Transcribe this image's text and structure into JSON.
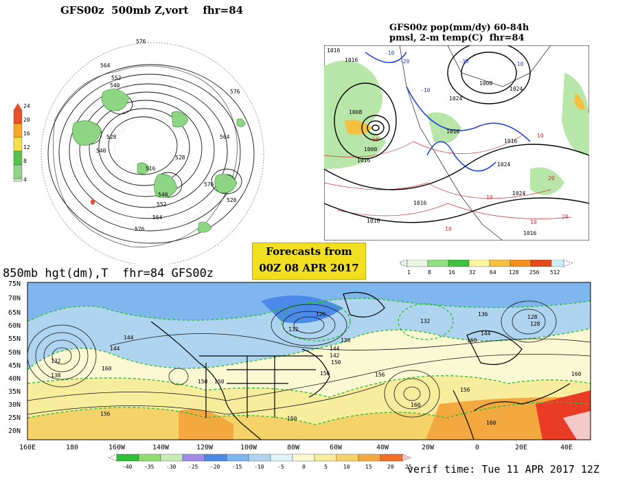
{
  "polar_panel": {
    "title": "GFS00z  500mb Z,vort    fhr=84",
    "scale_labels": [
      "24",
      "20",
      "16",
      "12",
      "8",
      "4"
    ],
    "scale_colors": [
      "#e8502a",
      "#f5a623",
      "#f4e04d",
      "#57c24a",
      "#8fd684",
      "#c8ecc0"
    ],
    "contour_labels": [
      "576",
      "564",
      "552",
      "540",
      "528",
      "540",
      "576",
      "564",
      "528",
      "516",
      "540",
      "552",
      "564",
      "576",
      "576",
      "528"
    ]
  },
  "na_panel": {
    "title_line1": "GFS00z pop(mm/dy) 60-84h",
    "title_line2": "pmsl, 2-m temp(C)  fhr=84",
    "pressure_labels": [
      "1016",
      "1016",
      "1008",
      "1000",
      "1016",
      "1008",
      "1024",
      "1024",
      "1016",
      "1016",
      "1024",
      "1024",
      "1016",
      "1016",
      "1016"
    ],
    "temp_labels": [
      "-10",
      "-20",
      "-30",
      "-10",
      "-10",
      "10",
      "10",
      "20",
      "10",
      "10",
      "10",
      "20"
    ],
    "scale_labels": [
      "1",
      "8",
      "16",
      "32",
      "64",
      "128",
      "256",
      "512"
    ],
    "scale_colors": [
      "#e9f7e2",
      "#8fe07f",
      "#40c040",
      "#fff8a0",
      "#f5c040",
      "#f58f1a",
      "#e34a1a",
      "#ccf0f8"
    ]
  },
  "forecast_box": {
    "line1": "Forecasts from",
    "line2": "00Z 08 APR 2017"
  },
  "h850_panel": {
    "title": "850mb hgt(dm),T  fhr=84 GFS00z",
    "lat_labels": [
      "75N",
      "70N",
      "65N",
      "60N",
      "55N",
      "50N",
      "45N",
      "40N",
      "35N",
      "30N",
      "25N",
      "20N"
    ],
    "lon_labels": [
      "160E",
      "180",
      "160W",
      "140W",
      "120W",
      "100W",
      "80W",
      "60W",
      "40W",
      "20W",
      "0",
      "20E",
      "40E"
    ],
    "height_labels": [
      "144",
      "144",
      "132",
      "138",
      "160",
      "150",
      "126",
      "132",
      "136",
      "144",
      "142",
      "150",
      "156",
      "156",
      "150",
      "160",
      "144",
      "156",
      "160",
      "132",
      "136",
      "128",
      "128",
      "150",
      "160",
      "156",
      "160"
    ],
    "temp_scale_labels": [
      "-40",
      "-35",
      "-30",
      "-25",
      "-20",
      "-15",
      "-10",
      "-5",
      "0",
      "5",
      "10",
      "15",
      "20",
      "25"
    ],
    "temp_scale_colors": [
      "#2fc03a",
      "#8fdc70",
      "#c9ecb5",
      "#a48ae8",
      "#4b8ae8",
      "#7fb6ee",
      "#aed4f0",
      "#dff3f8",
      "#fbf8d4",
      "#f8ed9c",
      "#f5d36a",
      "#f3a93f",
      "#f0702a",
      "#ea3b24"
    ]
  },
  "verif_time": "verif time: Tue 11 APR 2017 12Z"
}
